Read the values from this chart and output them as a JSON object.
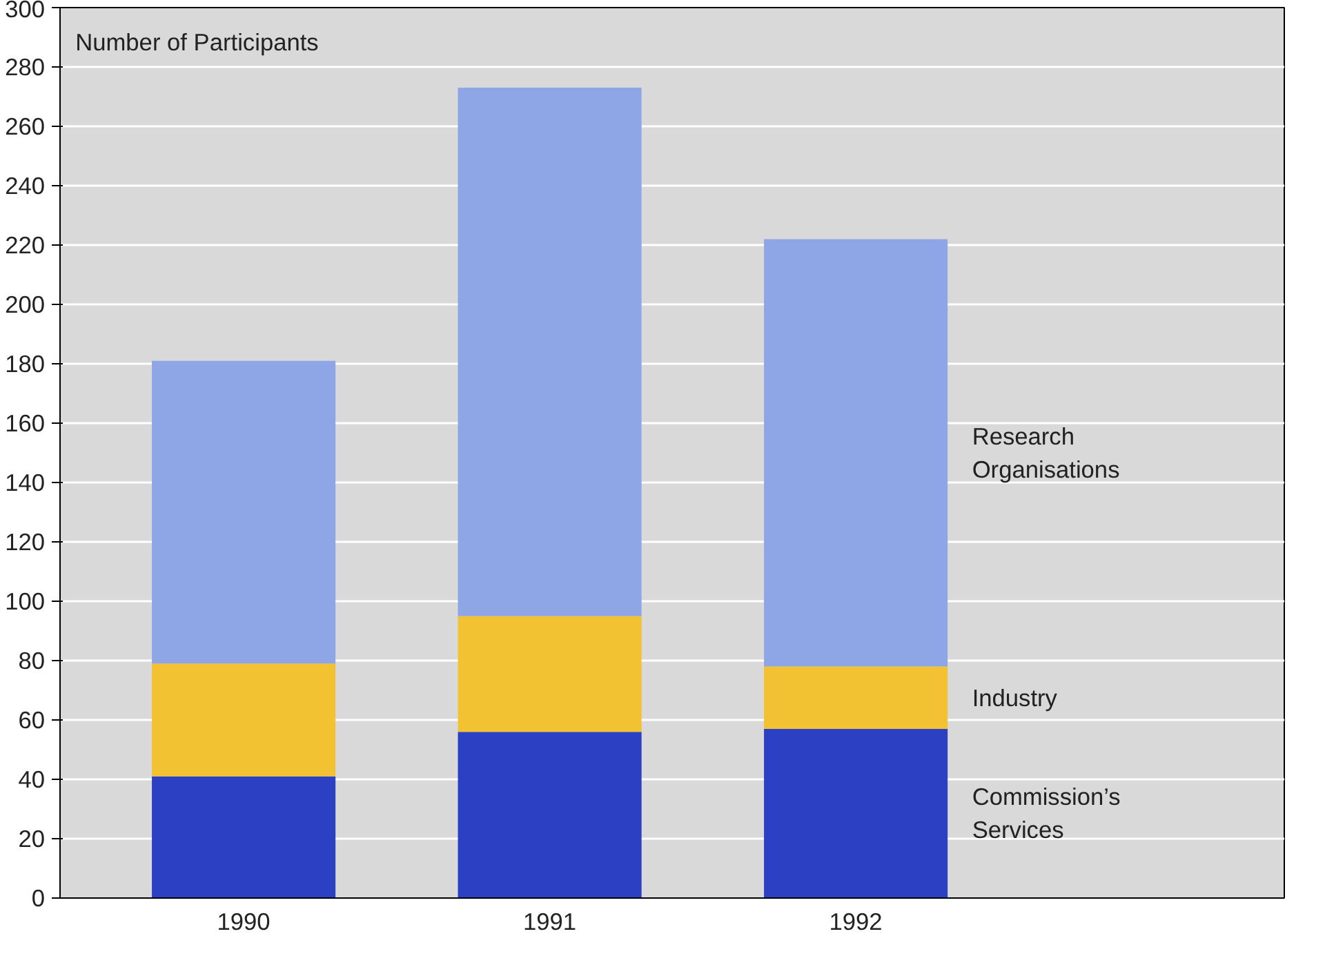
{
  "chart_data": {
    "type": "bar",
    "stacked": true,
    "ylabel": "Number of Participants",
    "categories": [
      "1990",
      "1991",
      "1992"
    ],
    "series": [
      {
        "name": "Commission’s Services",
        "color": "#2b40c2",
        "values": [
          41,
          56,
          57
        ]
      },
      {
        "name": "Industry",
        "color": "#f2c232",
        "values": [
          38,
          39,
          21
        ]
      },
      {
        "name": "Research Organisations",
        "color": "#8ea5e6",
        "values": [
          102,
          178,
          144
        ]
      }
    ],
    "ylim": [
      0,
      300
    ],
    "yticks": [
      0,
      20,
      40,
      60,
      80,
      100,
      120,
      140,
      160,
      180,
      200,
      220,
      240,
      260,
      280,
      300
    ],
    "grid": "y",
    "legend": "right"
  }
}
